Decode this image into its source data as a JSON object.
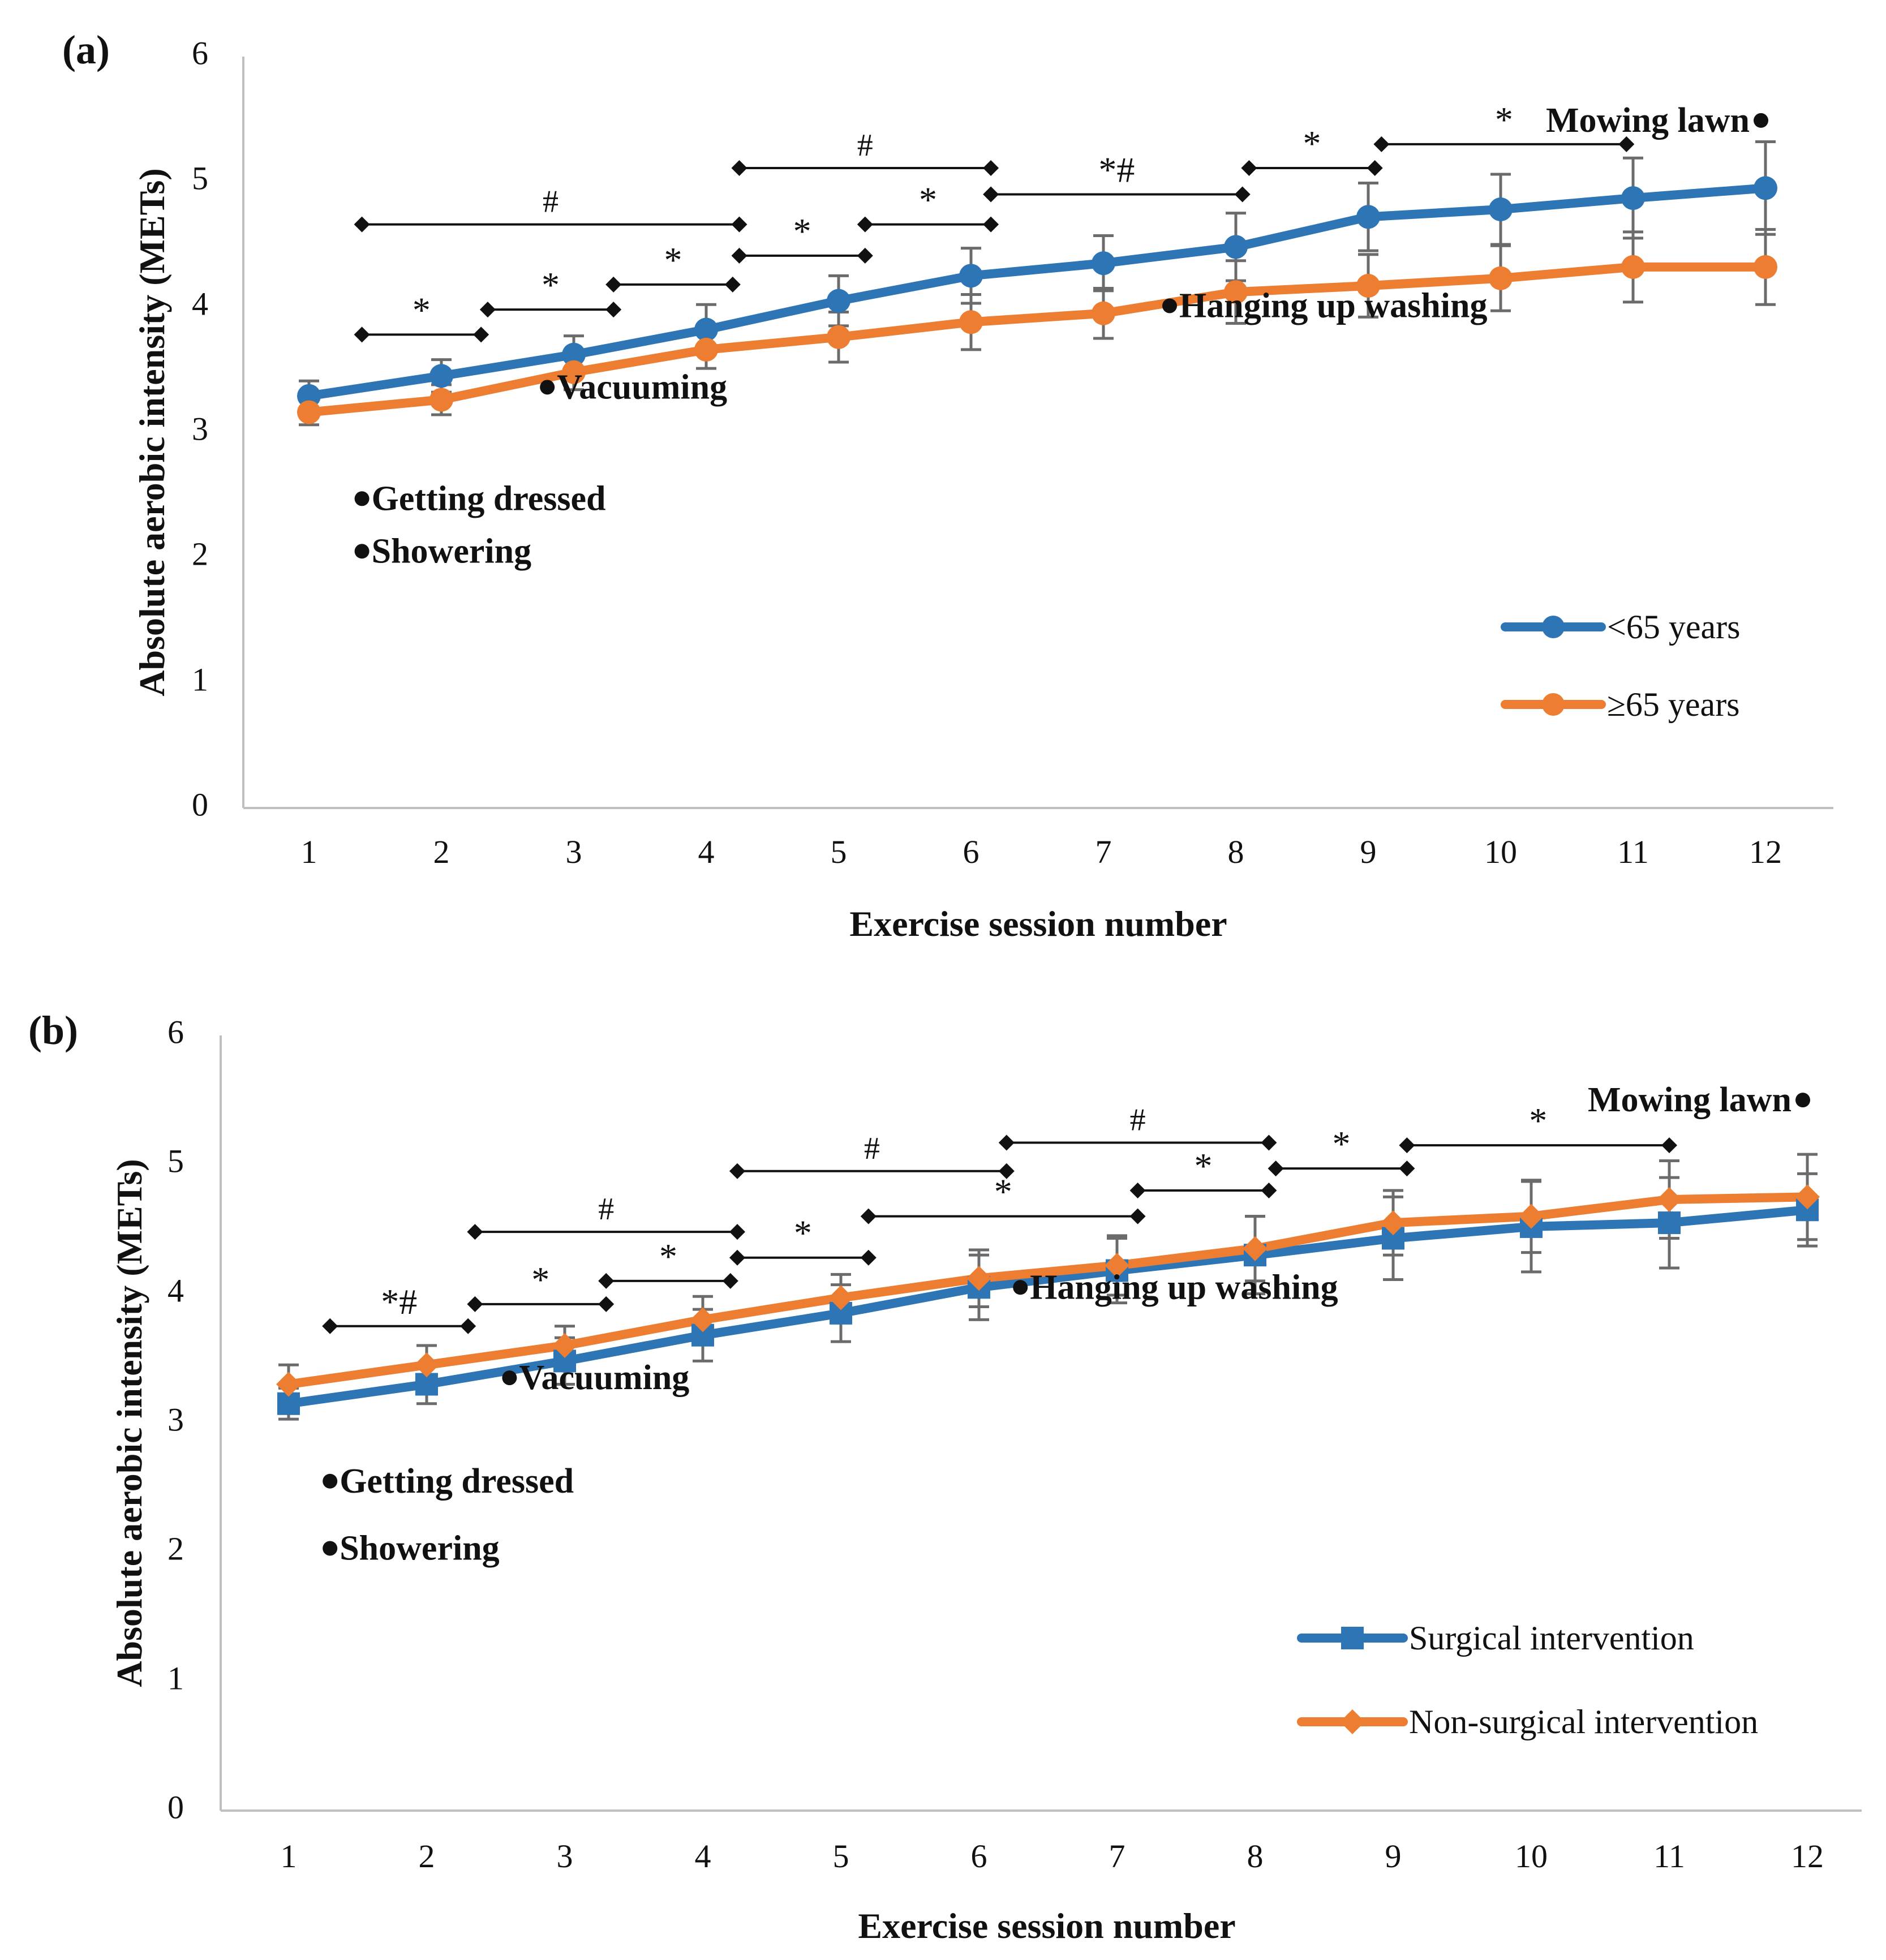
{
  "chart_data": [
    {
      "type": "line",
      "panel_label": "(a)",
      "xlabel": "Exercise session number",
      "ylabel": "Absolute aerobic intensity (METs)",
      "ylim": [
        0,
        6
      ],
      "yticks": [
        "0",
        "1",
        "2",
        "3",
        "4",
        "5",
        "6"
      ],
      "categories": [
        "1",
        "2",
        "3",
        "4",
        "5",
        "6",
        "7",
        "8",
        "9",
        "10",
        "11",
        "12"
      ],
      "series": [
        {
          "name": "<65 years",
          "color": "#2E75B6",
          "marker": "circle",
          "values": [
            3.29,
            3.45,
            3.62,
            3.82,
            4.05,
            4.25,
            4.35,
            4.48,
            4.72,
            4.78,
            4.87,
            4.95
          ],
          "errors": [
            0.12,
            0.13,
            0.15,
            0.2,
            0.2,
            0.22,
            0.22,
            0.27,
            0.27,
            0.28,
            0.32,
            0.37
          ]
        },
        {
          "name": "≥65 years",
          "color": "#ED7D31",
          "marker": "circle",
          "values": [
            3.16,
            3.26,
            3.48,
            3.66,
            3.76,
            3.88,
            3.95,
            4.12,
            4.17,
            4.23,
            4.32,
            4.32
          ],
          "errors": [
            0.1,
            0.12,
            0.14,
            0.15,
            0.2,
            0.22,
            0.2,
            0.25,
            0.25,
            0.26,
            0.28,
            0.3
          ]
        }
      ],
      "activities": [
        {
          "label": "Getting dressed",
          "x": 1.4,
          "y": 2.47
        },
        {
          "label": "Showering",
          "x": 1.4,
          "y": 2.05
        },
        {
          "label": "Vacuuming",
          "x": 2.8,
          "y": 3.36
        },
        {
          "label": "Hanging up washing",
          "x": 7.5,
          "y": 4.01
        },
        {
          "label": "Mowing lawn",
          "x": 12.0,
          "y": 5.49
        }
      ],
      "significance": [
        {
          "label": "*",
          "x1": 1.4,
          "x2": 2.3,
          "y": 3.78
        },
        {
          "label": "*",
          "x1": 2.35,
          "x2": 3.3,
          "y": 3.98
        },
        {
          "label": "*",
          "x1": 3.3,
          "x2": 4.2,
          "y": 4.18
        },
        {
          "label": "*",
          "x1": 4.25,
          "x2": 5.2,
          "y": 4.41
        },
        {
          "label": "*",
          "x1": 5.2,
          "x2": 6.15,
          "y": 4.66
        },
        {
          "label": "#",
          "x1": 1.4,
          "x2": 4.25,
          "y": 4.66
        },
        {
          "label": "#",
          "x1": 4.25,
          "x2": 6.15,
          "y": 5.11
        },
        {
          "label": "*#",
          "x1": 6.15,
          "x2": 8.05,
          "y": 4.9
        },
        {
          "label": "*",
          "x1": 8.1,
          "x2": 9.05,
          "y": 5.11
        },
        {
          "label": "*",
          "x1": 9.1,
          "x2": 10.95,
          "y": 5.3
        }
      ]
    },
    {
      "type": "line",
      "panel_label": "(b)",
      "xlabel": "Exercise session number",
      "ylabel": "Absolute aerobic intensity (METs)",
      "ylim": [
        0,
        6
      ],
      "yticks": [
        "0",
        "1",
        "2",
        "3",
        "4",
        "5",
        "6"
      ],
      "categories": [
        "1",
        "2",
        "3",
        "4",
        "5",
        "6",
        "7",
        "8",
        "9",
        "10",
        "11",
        "12"
      ],
      "series": [
        {
          "name": "Surgical intervention",
          "color": "#2E75B6",
          "marker": "square",
          "values": [
            3.15,
            3.3,
            3.48,
            3.68,
            3.85,
            4.05,
            4.18,
            4.3,
            4.43,
            4.52,
            4.55,
            4.65
          ],
          "errors": [
            0.12,
            0.15,
            0.18,
            0.2,
            0.22,
            0.25,
            0.25,
            0.3,
            0.32,
            0.35,
            0.35,
            0.28
          ]
        },
        {
          "name": "Non-surgical intervention",
          "color": "#ED7D31",
          "marker": "diamond",
          "values": [
            3.3,
            3.45,
            3.6,
            3.8,
            3.97,
            4.12,
            4.22,
            4.35,
            4.55,
            4.6,
            4.73,
            4.75
          ],
          "errors": [
            0.15,
            0.15,
            0.15,
            0.18,
            0.18,
            0.22,
            0.23,
            0.25,
            0.25,
            0.28,
            0.3,
            0.33
          ]
        }
      ],
      "activities": [
        {
          "label": "Getting dressed",
          "x": 1.3,
          "y": 2.55
        },
        {
          "label": "Showering",
          "x": 1.3,
          "y": 2.03
        },
        {
          "label": "Vacuuming",
          "x": 2.6,
          "y": 3.35
        },
        {
          "label": "Hanging up washing",
          "x": 6.3,
          "y": 4.05
        },
        {
          "label": "Mowing lawn",
          "x": 12.0,
          "y": 5.5
        }
      ],
      "significance": [
        {
          "label": "*#",
          "x1": 1.3,
          "x2": 2.3,
          "y": 3.75
        },
        {
          "label": "*",
          "x1": 2.35,
          "x2": 3.3,
          "y": 3.92
        },
        {
          "label": "*",
          "x1": 3.3,
          "x2": 4.2,
          "y": 4.1
        },
        {
          "label": "*",
          "x1": 4.25,
          "x2": 5.2,
          "y": 4.28
        },
        {
          "label": "#",
          "x1": 2.35,
          "x2": 4.25,
          "y": 4.48
        },
        {
          "label": "*",
          "x1": 5.2,
          "x2": 7.15,
          "y": 4.6
        },
        {
          "label": "#",
          "x1": 4.25,
          "x2": 6.2,
          "y": 4.95
        },
        {
          "label": "*",
          "x1": 7.15,
          "x2": 8.1,
          "y": 4.8
        },
        {
          "label": "#",
          "x1": 6.2,
          "x2": 8.1,
          "y": 5.17
        },
        {
          "label": "*",
          "x1": 8.15,
          "x2": 9.1,
          "y": 4.97
        },
        {
          "label": "*",
          "x1": 9.1,
          "x2": 11.0,
          "y": 5.15
        }
      ]
    }
  ]
}
